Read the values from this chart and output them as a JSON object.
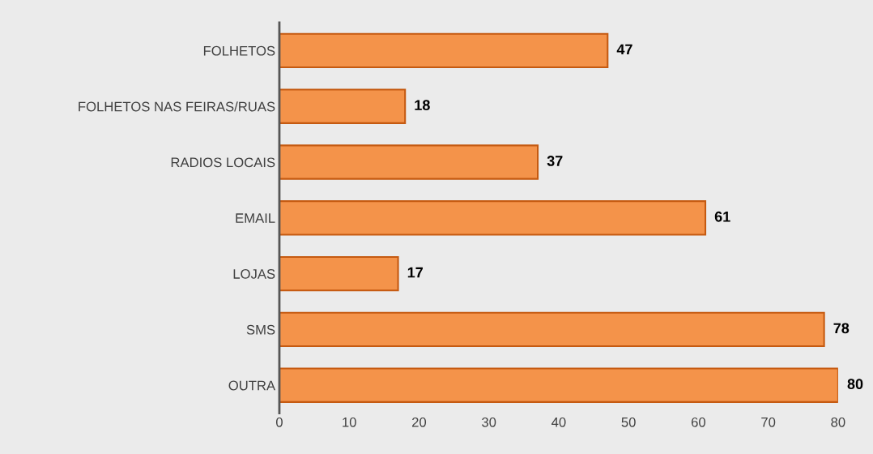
{
  "chart_data": {
    "type": "bar",
    "orientation": "horizontal",
    "categories": [
      "FOLHETOS",
      "FOLHETOS NAS FEIRAS/RUAS",
      "RADIOS LOCAIS",
      "EMAIL",
      "LOJAS",
      "SMS",
      "OUTRA"
    ],
    "values": [
      47,
      18,
      37,
      61,
      17,
      78,
      80
    ],
    "color": "#f4934a",
    "data_labels": true,
    "xlim": [
      0,
      80
    ],
    "xticks": [
      0,
      10,
      20,
      30,
      40,
      50,
      60,
      70,
      80
    ],
    "grid": false,
    "legend": false
  }
}
